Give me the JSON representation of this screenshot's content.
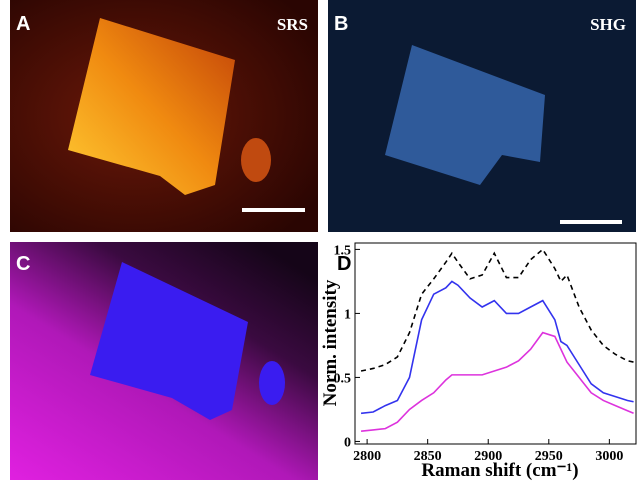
{
  "panels": [
    {
      "label": "A",
      "caption": "SRS"
    },
    {
      "label": "B",
      "caption": "SHG"
    },
    {
      "label": "C"
    },
    {
      "label": "D"
    }
  ],
  "chart_data": {
    "type": "line",
    "xlabel": "Raman shift (cm⁻¹)",
    "ylabel": "Norm. intensity",
    "x": [
      2795,
      2805,
      2815,
      2825,
      2835,
      2845,
      2855,
      2865,
      2870,
      2875,
      2885,
      2895,
      2905,
      2915,
      2925,
      2935,
      2945,
      2955,
      2960,
      2965,
      2975,
      2985,
      2995,
      3005,
      3015,
      3020
    ],
    "series": [
      {
        "color": "#000000",
        "dashed": true,
        "values": [
          0.55,
          0.57,
          0.6,
          0.66,
          0.85,
          1.15,
          1.27,
          1.4,
          1.47,
          1.4,
          1.27,
          1.3,
          1.47,
          1.28,
          1.28,
          1.42,
          1.5,
          1.35,
          1.25,
          1.3,
          1.05,
          0.87,
          0.75,
          0.68,
          0.63,
          0.62
        ]
      },
      {
        "color": "#3333ee",
        "values": [
          0.22,
          0.23,
          0.28,
          0.32,
          0.5,
          0.95,
          1.15,
          1.2,
          1.25,
          1.22,
          1.12,
          1.05,
          1.1,
          1.0,
          1.0,
          1.05,
          1.1,
          0.95,
          0.78,
          0.75,
          0.6,
          0.45,
          0.38,
          0.35,
          0.32,
          0.31
        ]
      },
      {
        "color": "#dd33dd",
        "values": [
          0.08,
          0.09,
          0.1,
          0.15,
          0.25,
          0.32,
          0.38,
          0.48,
          0.52,
          0.52,
          0.52,
          0.52,
          0.55,
          0.58,
          0.63,
          0.72,
          0.85,
          0.82,
          0.72,
          0.62,
          0.5,
          0.38,
          0.32,
          0.28,
          0.24,
          0.22
        ]
      }
    ],
    "xlim": [
      2790,
      3022
    ],
    "ylim": [
      -0.02,
      1.55
    ],
    "xticks": [
      2800,
      2850,
      2900,
      2950,
      3000
    ],
    "yticks": [
      0,
      0.5,
      1,
      1.5
    ]
  }
}
